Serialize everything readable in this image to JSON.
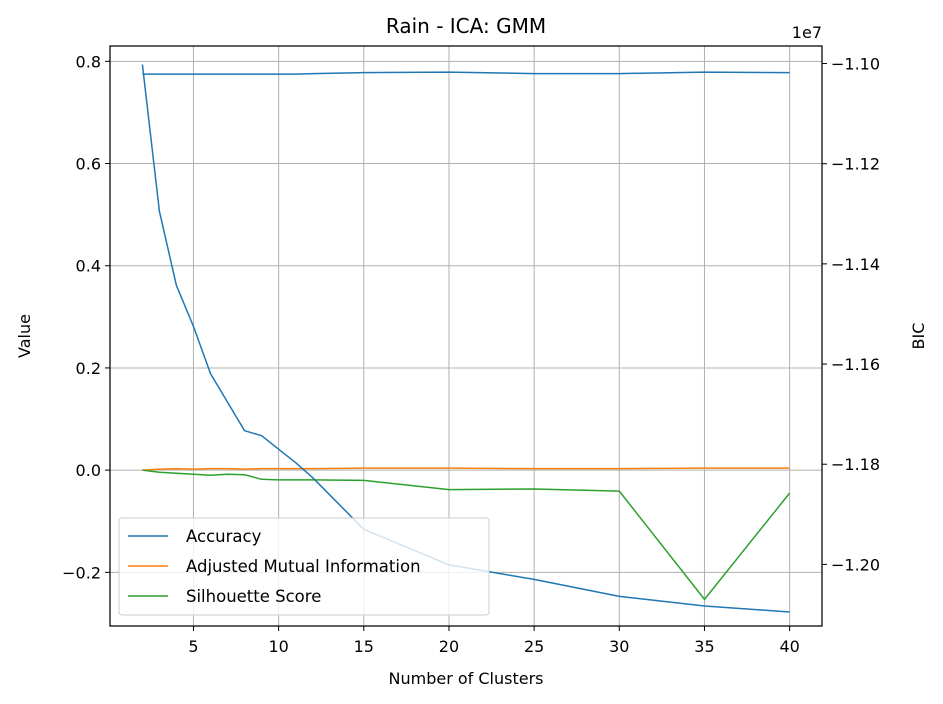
{
  "chart_data": {
    "type": "line",
    "title": "Rain - ICA: GMM",
    "xlabel": "Number of Clusters",
    "ylabel_left": "Value",
    "ylabel_right": "BIC",
    "right_axis_offset_text": "1e7",
    "x": [
      2,
      3,
      4,
      5,
      6,
      7,
      8,
      9,
      10,
      11,
      12,
      15,
      20,
      25,
      30,
      35,
      40
    ],
    "xlim": [
      0.1,
      41.9
    ],
    "ylim_left": [
      -0.305,
      0.83
    ],
    "ylim_right": [
      -1.2123,
      -1.0965
    ],
    "x_ticks": [
      5,
      10,
      15,
      20,
      25,
      30,
      35,
      40
    ],
    "x_tick_labels": [
      "5",
      "10",
      "15",
      "20",
      "25",
      "30",
      "35",
      "40"
    ],
    "y_left_ticks": [
      -0.2,
      0.0,
      0.2,
      0.4,
      0.6,
      0.8
    ],
    "y_left_tick_labels": [
      "−0.2",
      "0.0",
      "0.2",
      "0.4",
      "0.6",
      "0.8"
    ],
    "y_right_ticks": [
      -1.2,
      -1.18,
      -1.16,
      -1.14,
      -1.12,
      -1.1
    ],
    "y_right_tick_labels": [
      "−1.20",
      "−1.18",
      "−1.16",
      "−1.14",
      "−1.12",
      "−1.10"
    ],
    "grid": true,
    "legend_position": "lower-left",
    "series": [
      {
        "name": "Accuracy",
        "axis": "left",
        "color": "#1f77b4",
        "values": [
          0.775,
          0.775,
          0.775,
          0.775,
          0.775,
          0.775,
          0.775,
          0.775,
          0.775,
          0.775,
          0.776,
          0.778,
          0.779,
          0.776,
          0.776,
          0.779,
          0.778
        ]
      },
      {
        "name": "Adjusted Mutual Information",
        "axis": "left",
        "color": "#ff7f0e",
        "values": [
          0.0,
          0.002,
          0.003,
          0.002,
          0.003,
          0.003,
          0.002,
          0.003,
          0.003,
          0.003,
          0.003,
          0.004,
          0.004,
          0.003,
          0.003,
          0.004,
          0.004
        ]
      },
      {
        "name": "Silhouette Score",
        "axis": "left",
        "color": "#2ca02c",
        "values": [
          0.0,
          -0.004,
          -0.006,
          -0.008,
          -0.01,
          -0.008,
          -0.009,
          -0.018,
          -0.019,
          -0.019,
          -0.019,
          -0.02,
          -0.038,
          -0.037,
          -0.041,
          -0.253,
          -0.045
        ]
      },
      {
        "name": "BIC",
        "axis": "right",
        "color": "#1f77b4",
        "legend": false,
        "values": [
          -1.1002,
          -1.1295,
          -1.1443,
          -1.1525,
          -1.1619,
          -1.1676,
          -1.1733,
          -1.1743,
          -1.177,
          -1.1797,
          -1.1827,
          -1.193,
          -1.2001,
          -1.203,
          -1.2064,
          -1.2083,
          -1.2095
        ]
      }
    ]
  }
}
